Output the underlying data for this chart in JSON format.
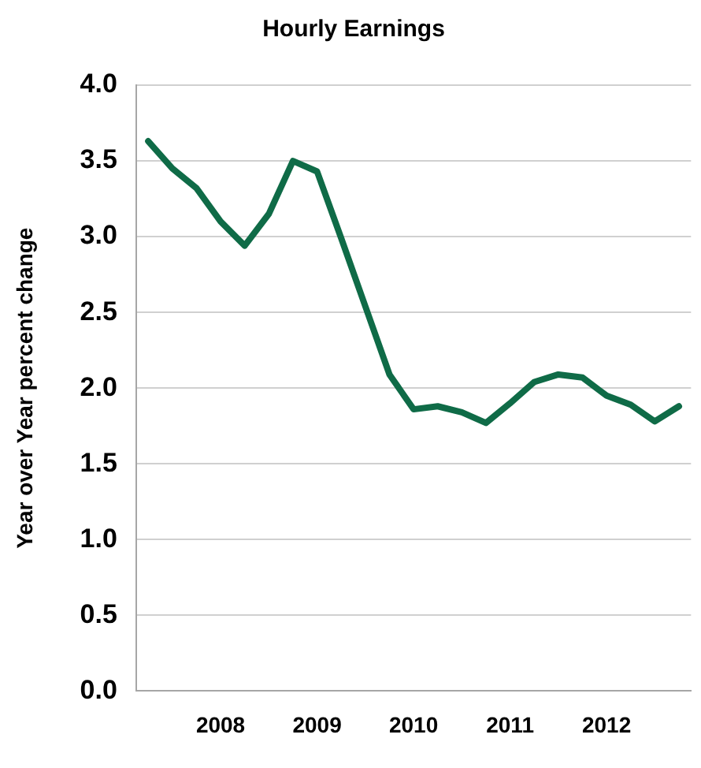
{
  "chart_data": {
    "type": "line",
    "title": "Hourly Earnings",
    "ylabel": "Year over Year percent change",
    "categories": [
      null,
      null,
      null,
      "2008",
      null,
      null,
      null,
      "2009",
      null,
      null,
      null,
      "2010",
      null,
      null,
      null,
      "2011",
      null,
      null,
      null,
      "2012",
      null,
      null,
      null
    ],
    "series": [
      {
        "color": "#0f6b47",
        "values": [
          3.63,
          3.45,
          3.32,
          3.1,
          2.94,
          3.15,
          3.5,
          3.43,
          2.99,
          2.54,
          2.09,
          1.86,
          1.88,
          1.84,
          1.77,
          1.9,
          2.04,
          2.09,
          2.07,
          1.95,
          1.89,
          1.78,
          1.88
        ]
      }
    ],
    "ylim": [
      0,
      4
    ],
    "yticks": [
      {
        "value": 0,
        "label": "0.0"
      },
      0.5,
      {
        "value": 1,
        "label": "1.0"
      },
      1.5,
      {
        "value": 2,
        "label": "2.0"
      },
      2.5,
      {
        "value": 3,
        "label": "3.0"
      },
      3.5,
      {
        "value": 4,
        "label": "4.0"
      }
    ],
    "grid": "y",
    "legend": false,
    "marker": "none",
    "line_style": "solid"
  }
}
